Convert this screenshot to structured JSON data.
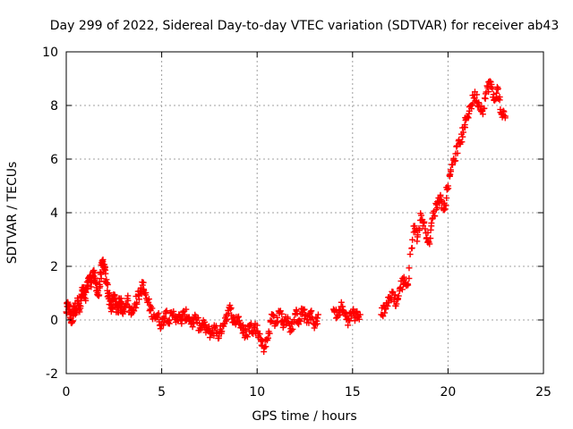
{
  "chart_data": {
    "type": "scatter",
    "title": "Day 299 of 2022, Sidereal Day-to-day VTEC variation (SDTVAR) for receiver ab43",
    "xlabel": "GPS time / hours",
    "ylabel": "SDTVAR / TECUs",
    "xlim": [
      0,
      25
    ],
    "ylim": [
      -2,
      10
    ],
    "xticks": [
      0,
      5,
      10,
      15,
      20,
      25
    ],
    "yticks": [
      -2,
      0,
      2,
      4,
      6,
      8,
      10
    ],
    "grid": true,
    "marker": "+",
    "color": "#ff0000",
    "series": [
      {
        "name": "SDTVAR",
        "x": [
          0.0,
          0.1,
          0.2,
          0.3,
          0.4,
          0.5,
          0.6,
          0.7,
          0.8,
          0.9,
          1.0,
          1.1,
          1.2,
          1.3,
          1.4,
          1.5,
          1.6,
          1.7,
          1.8,
          1.9,
          2.0,
          2.1,
          2.2,
          2.3,
          2.4,
          2.5,
          2.6,
          2.7,
          2.8,
          2.9,
          3.0,
          3.2,
          3.4,
          3.6,
          3.8,
          4.0,
          4.2,
          4.4,
          4.6,
          4.8,
          5.0,
          5.2,
          5.4,
          5.6,
          5.8,
          6.0,
          6.2,
          6.4,
          6.6,
          6.8,
          7.0,
          7.2,
          7.4,
          7.6,
          7.8,
          8.0,
          8.2,
          8.4,
          8.6,
          8.8,
          9.0,
          9.2,
          9.4,
          9.6,
          9.8,
          10.0,
          10.2,
          10.4,
          10.6,
          10.8,
          11.0,
          11.2,
          11.4,
          11.6,
          11.8,
          12.0,
          12.2,
          12.4,
          12.6,
          12.8,
          13.0,
          13.2,
          14.0,
          14.2,
          14.4,
          14.6,
          14.8,
          15.0,
          15.2,
          15.4,
          16.5,
          16.7,
          16.9,
          17.1,
          17.3,
          17.5,
          17.7,
          17.9,
          18.2,
          18.4,
          18.6,
          18.8,
          19.0,
          19.2,
          19.4,
          19.6,
          19.8,
          20.0,
          20.2,
          20.4,
          20.6,
          20.8,
          21.0,
          21.2,
          21.4,
          21.6,
          21.8,
          22.0,
          22.2,
          22.4,
          22.6,
          22.8,
          23.0
        ],
        "y": [
          0.3,
          0.6,
          0.2,
          -0.1,
          0.5,
          0.4,
          0.7,
          0.3,
          0.9,
          1.1,
          0.8,
          1.3,
          1.6,
          1.4,
          1.8,
          1.5,
          1.2,
          0.9,
          1.7,
          2.1,
          1.9,
          1.4,
          1.0,
          0.7,
          0.4,
          0.9,
          0.6,
          0.3,
          0.8,
          0.5,
          0.4,
          0.8,
          0.2,
          0.6,
          0.9,
          1.3,
          0.8,
          0.4,
          0.2,
          0.1,
          -0.2,
          0.3,
          0.0,
          0.2,
          0.1,
          0.0,
          0.2,
          0.1,
          -0.1,
          0.0,
          -0.3,
          -0.2,
          -0.4,
          -0.5,
          -0.3,
          -0.6,
          -0.2,
          0.2,
          0.4,
          -0.1,
          0.1,
          -0.3,
          -0.6,
          -0.2,
          -0.4,
          -0.2,
          -0.8,
          -1.0,
          -0.5,
          0.2,
          -0.1,
          0.3,
          -0.2,
          0.1,
          -0.4,
          0.2,
          0.0,
          0.4,
          -0.1,
          0.3,
          -0.3,
          0.2,
          0.4,
          0.1,
          0.5,
          0.2,
          0.0,
          0.3,
          0.1,
          0.2,
          0.2,
          0.5,
          0.7,
          1.0,
          0.6,
          1.2,
          1.5,
          1.3,
          3.5,
          3.1,
          3.9,
          3.4,
          2.9,
          3.8,
          4.3,
          4.6,
          4.1,
          5.0,
          5.8,
          6.2,
          6.6,
          7.0,
          7.6,
          8.0,
          8.4,
          8.1,
          7.8,
          8.5,
          8.9,
          8.2,
          8.6,
          7.7,
          7.6
        ]
      }
    ]
  }
}
